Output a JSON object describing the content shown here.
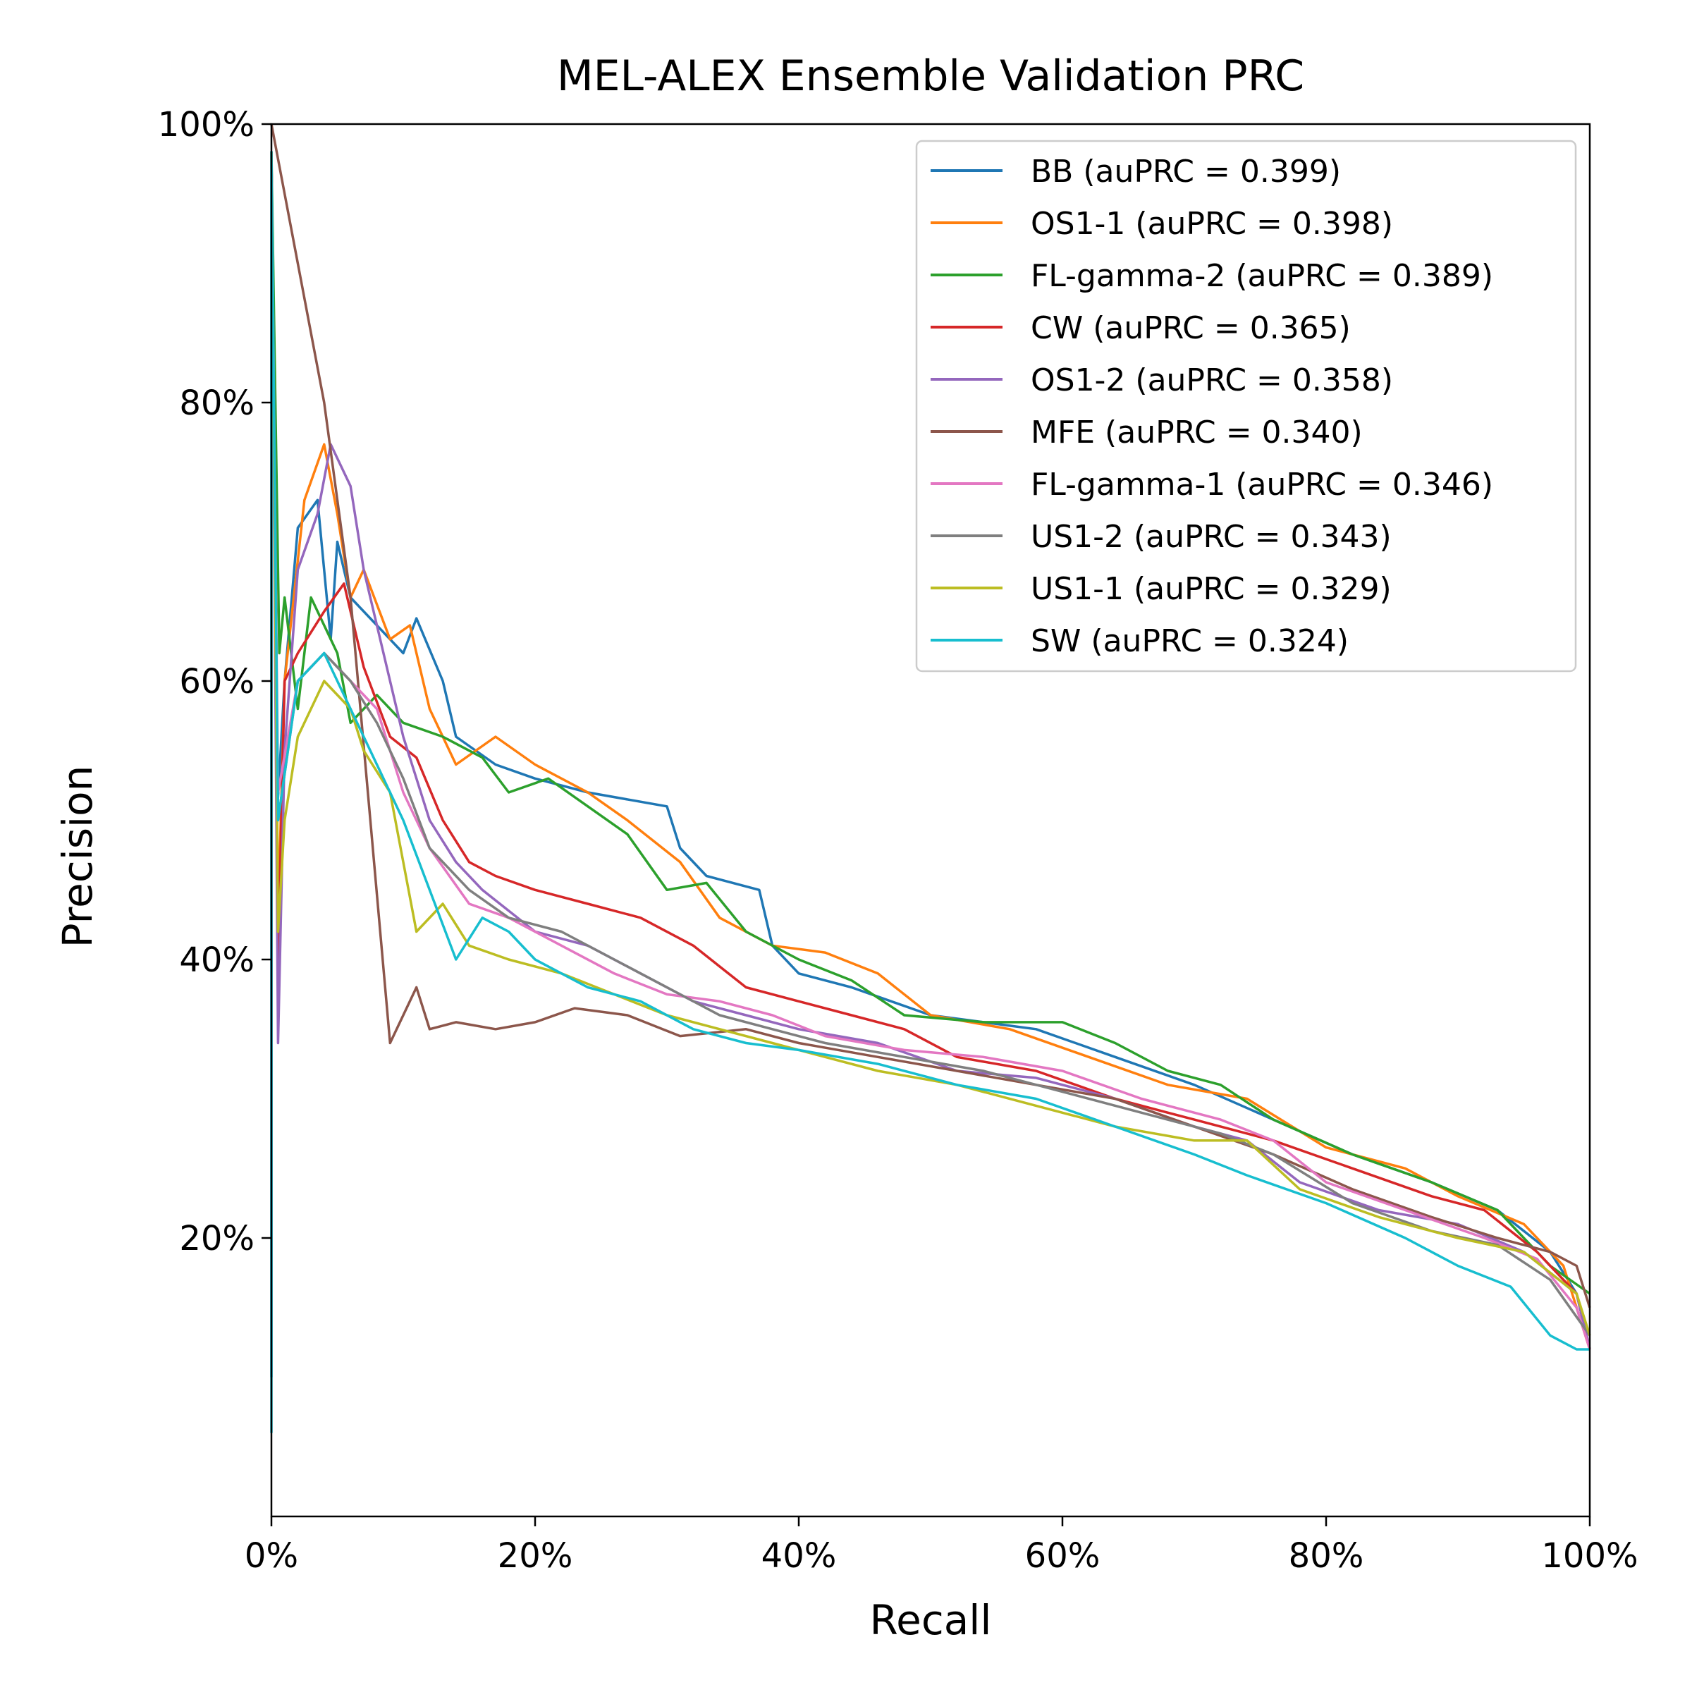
{
  "chart_data": {
    "type": "line",
    "title": "MEL-ALEX Ensemble Validation PRC",
    "xlabel": "Recall",
    "ylabel": "Precision",
    "xlim": [
      0,
      1
    ],
    "ylim": [
      0,
      1
    ],
    "x_ticks": [
      "0%",
      "20%",
      "40%",
      "60%",
      "80%",
      "100%"
    ],
    "y_ticks": [
      "20%",
      "40%",
      "60%",
      "80%",
      "100%"
    ],
    "grid": false,
    "legend_position": "top-right",
    "series": [
      {
        "name": "BB (auPRC = 0.399)",
        "color": "#1f77b4",
        "points": [
          [
            0,
            0.1
          ],
          [
            0,
            0.98
          ],
          [
            0.004,
            0.5
          ],
          [
            0.01,
            0.6
          ],
          [
            0.02,
            0.71
          ],
          [
            0.035,
            0.73
          ],
          [
            0.045,
            0.63
          ],
          [
            0.05,
            0.7
          ],
          [
            0.06,
            0.66
          ],
          [
            0.08,
            0.64
          ],
          [
            0.1,
            0.62
          ],
          [
            0.11,
            0.645
          ],
          [
            0.13,
            0.6
          ],
          [
            0.14,
            0.56
          ],
          [
            0.17,
            0.54
          ],
          [
            0.2,
            0.53
          ],
          [
            0.24,
            0.52
          ],
          [
            0.3,
            0.51
          ],
          [
            0.31,
            0.48
          ],
          [
            0.33,
            0.46
          ],
          [
            0.37,
            0.45
          ],
          [
            0.38,
            0.41
          ],
          [
            0.4,
            0.39
          ],
          [
            0.44,
            0.38
          ],
          [
            0.5,
            0.36
          ],
          [
            0.58,
            0.35
          ],
          [
            0.64,
            0.33
          ],
          [
            0.7,
            0.31
          ],
          [
            0.76,
            0.285
          ],
          [
            0.82,
            0.26
          ],
          [
            0.88,
            0.24
          ],
          [
            0.93,
            0.22
          ],
          [
            0.97,
            0.19
          ],
          [
            0.99,
            0.16
          ],
          [
            1.0,
            0.12
          ]
        ]
      },
      {
        "name": "OS1-1 (auPRC = 0.398)",
        "color": "#ff7f0e",
        "points": [
          [
            0,
            0.98
          ],
          [
            0.005,
            0.43
          ],
          [
            0.01,
            0.6
          ],
          [
            0.025,
            0.73
          ],
          [
            0.04,
            0.77
          ],
          [
            0.05,
            0.72
          ],
          [
            0.06,
            0.66
          ],
          [
            0.07,
            0.68
          ],
          [
            0.09,
            0.63
          ],
          [
            0.105,
            0.64
          ],
          [
            0.12,
            0.58
          ],
          [
            0.14,
            0.54
          ],
          [
            0.17,
            0.56
          ],
          [
            0.2,
            0.54
          ],
          [
            0.24,
            0.52
          ],
          [
            0.27,
            0.5
          ],
          [
            0.31,
            0.47
          ],
          [
            0.34,
            0.43
          ],
          [
            0.38,
            0.41
          ],
          [
            0.42,
            0.405
          ],
          [
            0.46,
            0.39
          ],
          [
            0.5,
            0.36
          ],
          [
            0.56,
            0.35
          ],
          [
            0.62,
            0.33
          ],
          [
            0.68,
            0.31
          ],
          [
            0.74,
            0.3
          ],
          [
            0.8,
            0.265
          ],
          [
            0.86,
            0.25
          ],
          [
            0.9,
            0.23
          ],
          [
            0.95,
            0.21
          ],
          [
            0.98,
            0.18
          ],
          [
            1.0,
            0.12
          ]
        ]
      },
      {
        "name": "FL-gamma-2 (auPRC = 0.389)",
        "color": "#2ca02c",
        "points": [
          [
            0,
            0.98
          ],
          [
            0.006,
            0.62
          ],
          [
            0.01,
            0.66
          ],
          [
            0.02,
            0.58
          ],
          [
            0.03,
            0.66
          ],
          [
            0.05,
            0.62
          ],
          [
            0.06,
            0.57
          ],
          [
            0.08,
            0.59
          ],
          [
            0.1,
            0.57
          ],
          [
            0.13,
            0.56
          ],
          [
            0.16,
            0.545
          ],
          [
            0.18,
            0.52
          ],
          [
            0.21,
            0.53
          ],
          [
            0.24,
            0.51
          ],
          [
            0.27,
            0.49
          ],
          [
            0.3,
            0.45
          ],
          [
            0.33,
            0.455
          ],
          [
            0.36,
            0.42
          ],
          [
            0.4,
            0.4
          ],
          [
            0.44,
            0.385
          ],
          [
            0.48,
            0.36
          ],
          [
            0.54,
            0.355
          ],
          [
            0.6,
            0.355
          ],
          [
            0.64,
            0.34
          ],
          [
            0.68,
            0.32
          ],
          [
            0.72,
            0.31
          ],
          [
            0.76,
            0.285
          ],
          [
            0.82,
            0.26
          ],
          [
            0.88,
            0.24
          ],
          [
            0.93,
            0.22
          ],
          [
            0.97,
            0.18
          ],
          [
            1.0,
            0.16
          ]
        ]
      },
      {
        "name": "CW (auPRC = 0.365)",
        "color": "#d62728",
        "points": [
          [
            0,
            0.98
          ],
          [
            0.005,
            0.4
          ],
          [
            0.01,
            0.6
          ],
          [
            0.02,
            0.62
          ],
          [
            0.04,
            0.65
          ],
          [
            0.055,
            0.67
          ],
          [
            0.07,
            0.61
          ],
          [
            0.09,
            0.56
          ],
          [
            0.11,
            0.545
          ],
          [
            0.13,
            0.5
          ],
          [
            0.15,
            0.47
          ],
          [
            0.17,
            0.46
          ],
          [
            0.2,
            0.45
          ],
          [
            0.24,
            0.44
          ],
          [
            0.28,
            0.43
          ],
          [
            0.32,
            0.41
          ],
          [
            0.36,
            0.38
          ],
          [
            0.4,
            0.37
          ],
          [
            0.44,
            0.36
          ],
          [
            0.48,
            0.35
          ],
          [
            0.52,
            0.33
          ],
          [
            0.58,
            0.32
          ],
          [
            0.64,
            0.3
          ],
          [
            0.7,
            0.285
          ],
          [
            0.76,
            0.27
          ],
          [
            0.82,
            0.25
          ],
          [
            0.88,
            0.23
          ],
          [
            0.92,
            0.22
          ],
          [
            0.96,
            0.19
          ],
          [
            0.99,
            0.16
          ],
          [
            1.0,
            0.12
          ]
        ]
      },
      {
        "name": "OS1-2 (auPRC = 0.358)",
        "color": "#9467bd",
        "points": [
          [
            0,
            0.98
          ],
          [
            0.005,
            0.34
          ],
          [
            0.01,
            0.55
          ],
          [
            0.02,
            0.68
          ],
          [
            0.035,
            0.72
          ],
          [
            0.045,
            0.77
          ],
          [
            0.06,
            0.74
          ],
          [
            0.07,
            0.68
          ],
          [
            0.08,
            0.64
          ],
          [
            0.1,
            0.56
          ],
          [
            0.12,
            0.5
          ],
          [
            0.14,
            0.47
          ],
          [
            0.16,
            0.45
          ],
          [
            0.2,
            0.42
          ],
          [
            0.24,
            0.41
          ],
          [
            0.28,
            0.39
          ],
          [
            0.32,
            0.37
          ],
          [
            0.36,
            0.36
          ],
          [
            0.4,
            0.35
          ],
          [
            0.46,
            0.34
          ],
          [
            0.52,
            0.32
          ],
          [
            0.58,
            0.315
          ],
          [
            0.64,
            0.3
          ],
          [
            0.7,
            0.28
          ],
          [
            0.74,
            0.27
          ],
          [
            0.78,
            0.24
          ],
          [
            0.84,
            0.22
          ],
          [
            0.9,
            0.21
          ],
          [
            0.95,
            0.19
          ],
          [
            0.99,
            0.16
          ],
          [
            1.0,
            0.12
          ]
        ]
      },
      {
        "name": "MFE (auPRC = 0.340)",
        "color": "#8c564b",
        "points": [
          [
            0,
            1.0
          ],
          [
            0.02,
            0.9
          ],
          [
            0.04,
            0.8
          ],
          [
            0.06,
            0.66
          ],
          [
            0.075,
            0.5
          ],
          [
            0.09,
            0.34
          ],
          [
            0.11,
            0.38
          ],
          [
            0.12,
            0.35
          ],
          [
            0.14,
            0.355
          ],
          [
            0.17,
            0.35
          ],
          [
            0.2,
            0.355
          ],
          [
            0.23,
            0.365
          ],
          [
            0.27,
            0.36
          ],
          [
            0.31,
            0.345
          ],
          [
            0.36,
            0.35
          ],
          [
            0.4,
            0.34
          ],
          [
            0.46,
            0.33
          ],
          [
            0.52,
            0.32
          ],
          [
            0.58,
            0.31
          ],
          [
            0.64,
            0.3
          ],
          [
            0.7,
            0.28
          ],
          [
            0.76,
            0.26
          ],
          [
            0.82,
            0.235
          ],
          [
            0.88,
            0.215
          ],
          [
            0.93,
            0.2
          ],
          [
            0.97,
            0.19
          ],
          [
            0.99,
            0.18
          ],
          [
            1.0,
            0.15
          ]
        ]
      },
      {
        "name": "FL-gamma-1 (auPRC = 0.346)",
        "color": "#e377c2",
        "points": [
          [
            0,
            0.98
          ],
          [
            0.005,
            0.52
          ],
          [
            0.02,
            0.6
          ],
          [
            0.04,
            0.62
          ],
          [
            0.06,
            0.6
          ],
          [
            0.08,
            0.58
          ],
          [
            0.1,
            0.52
          ],
          [
            0.12,
            0.48
          ],
          [
            0.15,
            0.44
          ],
          [
            0.18,
            0.43
          ],
          [
            0.22,
            0.41
          ],
          [
            0.26,
            0.39
          ],
          [
            0.3,
            0.375
          ],
          [
            0.34,
            0.37
          ],
          [
            0.38,
            0.36
          ],
          [
            0.42,
            0.345
          ],
          [
            0.48,
            0.335
          ],
          [
            0.54,
            0.33
          ],
          [
            0.6,
            0.32
          ],
          [
            0.66,
            0.3
          ],
          [
            0.72,
            0.285
          ],
          [
            0.76,
            0.27
          ],
          [
            0.8,
            0.24
          ],
          [
            0.86,
            0.22
          ],
          [
            0.92,
            0.2
          ],
          [
            0.96,
            0.185
          ],
          [
            0.99,
            0.15
          ],
          [
            1.0,
            0.12
          ]
        ]
      },
      {
        "name": "US1-2 (auPRC = 0.343)",
        "color": "#7f7f7f",
        "points": [
          [
            0,
            0.98
          ],
          [
            0.005,
            0.5
          ],
          [
            0.02,
            0.6
          ],
          [
            0.04,
            0.62
          ],
          [
            0.06,
            0.6
          ],
          [
            0.08,
            0.57
          ],
          [
            0.1,
            0.53
          ],
          [
            0.12,
            0.48
          ],
          [
            0.15,
            0.45
          ],
          [
            0.18,
            0.43
          ],
          [
            0.22,
            0.42
          ],
          [
            0.26,
            0.4
          ],
          [
            0.3,
            0.38
          ],
          [
            0.34,
            0.36
          ],
          [
            0.38,
            0.35
          ],
          [
            0.42,
            0.34
          ],
          [
            0.48,
            0.33
          ],
          [
            0.54,
            0.32
          ],
          [
            0.6,
            0.305
          ],
          [
            0.66,
            0.29
          ],
          [
            0.72,
            0.275
          ],
          [
            0.76,
            0.26
          ],
          [
            0.82,
            0.225
          ],
          [
            0.88,
            0.205
          ],
          [
            0.93,
            0.195
          ],
          [
            0.97,
            0.17
          ],
          [
            1.0,
            0.13
          ]
        ]
      },
      {
        "name": "US1-1 (auPRC = 0.329)",
        "color": "#bcbd22",
        "points": [
          [
            0,
            0.98
          ],
          [
            0.005,
            0.42
          ],
          [
            0.01,
            0.5
          ],
          [
            0.02,
            0.56
          ],
          [
            0.04,
            0.6
          ],
          [
            0.06,
            0.58
          ],
          [
            0.07,
            0.55
          ],
          [
            0.09,
            0.52
          ],
          [
            0.1,
            0.47
          ],
          [
            0.11,
            0.42
          ],
          [
            0.13,
            0.44
          ],
          [
            0.15,
            0.41
          ],
          [
            0.18,
            0.4
          ],
          [
            0.22,
            0.39
          ],
          [
            0.26,
            0.375
          ],
          [
            0.3,
            0.36
          ],
          [
            0.34,
            0.35
          ],
          [
            0.38,
            0.34
          ],
          [
            0.42,
            0.33
          ],
          [
            0.46,
            0.32
          ],
          [
            0.52,
            0.31
          ],
          [
            0.58,
            0.295
          ],
          [
            0.64,
            0.28
          ],
          [
            0.7,
            0.27
          ],
          [
            0.74,
            0.27
          ],
          [
            0.78,
            0.235
          ],
          [
            0.84,
            0.215
          ],
          [
            0.9,
            0.2
          ],
          [
            0.95,
            0.19
          ],
          [
            0.99,
            0.16
          ],
          [
            1.0,
            0.13
          ]
        ]
      },
      {
        "name": "SW (auPRC = 0.324)",
        "color": "#17becf",
        "points": [
          [
            0,
            0.06
          ],
          [
            0,
            0.98
          ],
          [
            0.005,
            0.5
          ],
          [
            0.02,
            0.6
          ],
          [
            0.04,
            0.62
          ],
          [
            0.06,
            0.58
          ],
          [
            0.08,
            0.54
          ],
          [
            0.1,
            0.5
          ],
          [
            0.12,
            0.45
          ],
          [
            0.14,
            0.4
          ],
          [
            0.16,
            0.43
          ],
          [
            0.18,
            0.42
          ],
          [
            0.2,
            0.4
          ],
          [
            0.24,
            0.38
          ],
          [
            0.28,
            0.37
          ],
          [
            0.32,
            0.35
          ],
          [
            0.36,
            0.34
          ],
          [
            0.4,
            0.335
          ],
          [
            0.46,
            0.325
          ],
          [
            0.52,
            0.31
          ],
          [
            0.58,
            0.3
          ],
          [
            0.64,
            0.28
          ],
          [
            0.7,
            0.26
          ],
          [
            0.74,
            0.245
          ],
          [
            0.8,
            0.225
          ],
          [
            0.86,
            0.2
          ],
          [
            0.9,
            0.18
          ],
          [
            0.94,
            0.165
          ],
          [
            0.97,
            0.13
          ],
          [
            0.99,
            0.12
          ],
          [
            1.0,
            0.12
          ]
        ]
      }
    ]
  }
}
